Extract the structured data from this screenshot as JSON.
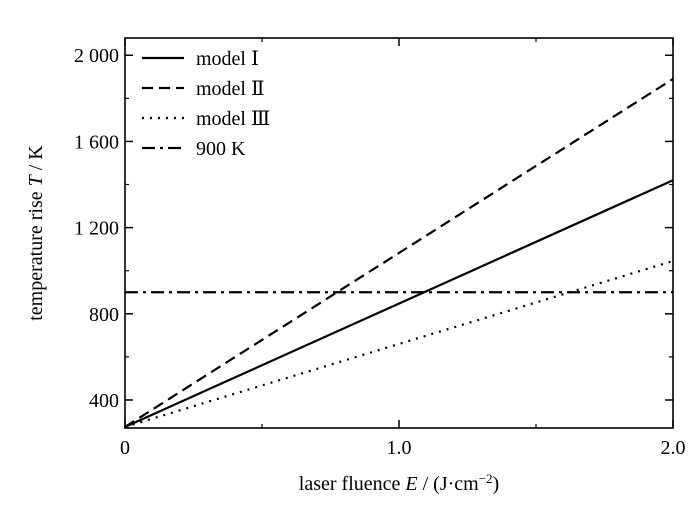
{
  "chart_data": {
    "type": "line",
    "xlabel": {
      "prefix": "laser fluence ",
      "italic": "E",
      "suffix": " / (J·cm",
      "sup": "−2",
      "end": ")"
    },
    "ylabel": {
      "prefix": "temperature rise ",
      "italic": "T",
      "suffix": " / K"
    },
    "xlim": [
      0,
      2.0
    ],
    "ylim": [
      270,
      2080
    ],
    "xticks": [
      {
        "value": 0,
        "label": "0"
      },
      {
        "value": 1.0,
        "label": "1.0"
      },
      {
        "value": 2.0,
        "label": "2.0"
      }
    ],
    "yticks": [
      {
        "value": 400,
        "label": "400"
      },
      {
        "value": 800,
        "label": "800"
      },
      {
        "value": 1200,
        "label": "1 200"
      },
      {
        "value": 1600,
        "label": "1 600"
      },
      {
        "value": 2000,
        "label": "2 000"
      }
    ],
    "series": [
      {
        "name": "model Ⅰ",
        "dash": "solid",
        "x": [
          0,
          2.0
        ],
        "y": [
          275,
          1420
        ]
      },
      {
        "name": "model Ⅱ",
        "dash": "dashed",
        "x": [
          0,
          2.0
        ],
        "y": [
          275,
          1890
        ]
      },
      {
        "name": "model Ⅲ",
        "dash": "dotted",
        "x": [
          0,
          2.0
        ],
        "y": [
          275,
          1045
        ]
      },
      {
        "name": "900 K",
        "dash": "dashdot",
        "x": [
          0,
          2.0
        ],
        "y": [
          900,
          900
        ]
      }
    ],
    "legend_position": "top-left"
  }
}
